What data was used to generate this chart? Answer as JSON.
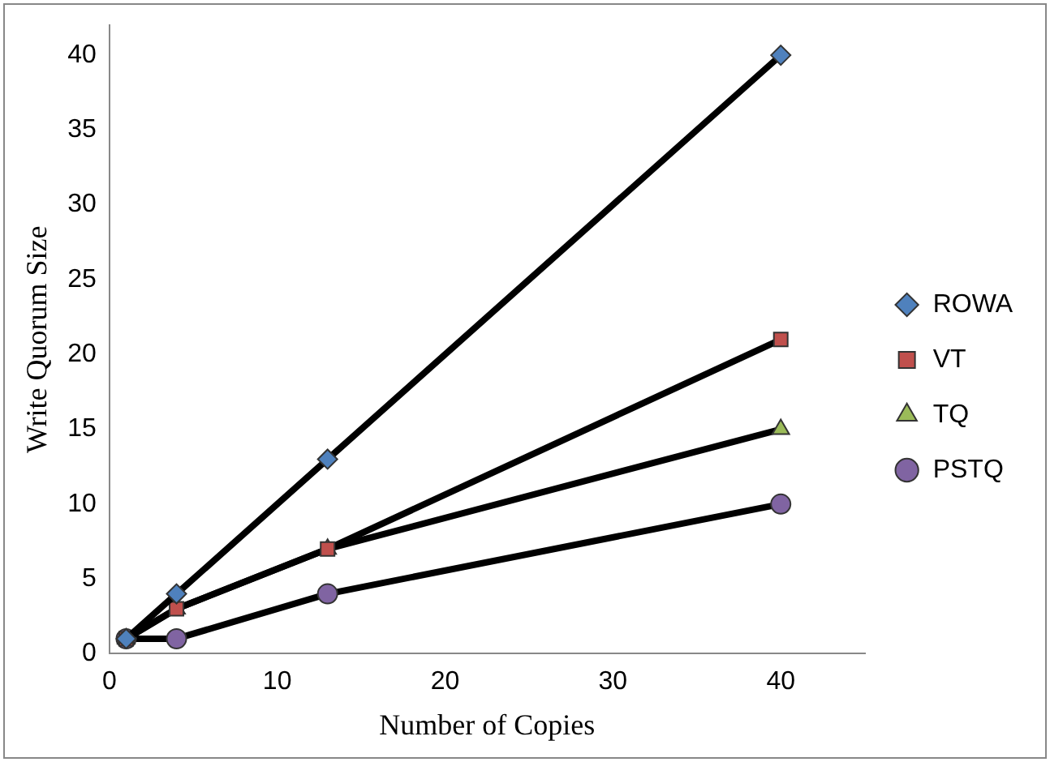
{
  "chart_data": {
    "type": "line",
    "xlabel": "Number of Copies",
    "ylabel": "Write Quorum Size",
    "x": [
      1,
      4,
      13,
      40
    ],
    "series": [
      {
        "name": "ROWA",
        "color": "#4f81bd",
        "marker": "diamond",
        "values": [
          1,
          4,
          13,
          40
        ]
      },
      {
        "name": "VT",
        "color": "#c0504d",
        "marker": "square",
        "values": [
          1,
          3,
          7,
          21
        ]
      },
      {
        "name": "TQ",
        "color": "#9bbb59",
        "marker": "triangle",
        "values": [
          1,
          3,
          7,
          15
        ]
      },
      {
        "name": "PSTQ",
        "color": "#8064a2",
        "marker": "circle",
        "values": [
          1,
          1,
          4,
          10
        ]
      }
    ],
    "xlim": [
      0,
      45
    ],
    "xticks": [
      0,
      10,
      20,
      30,
      40
    ],
    "ylim": [
      0,
      42
    ],
    "yticks": [
      0,
      5,
      10,
      15,
      20,
      25,
      30,
      35,
      40
    ],
    "grid": false,
    "legend": "right",
    "line_style": "solid"
  }
}
